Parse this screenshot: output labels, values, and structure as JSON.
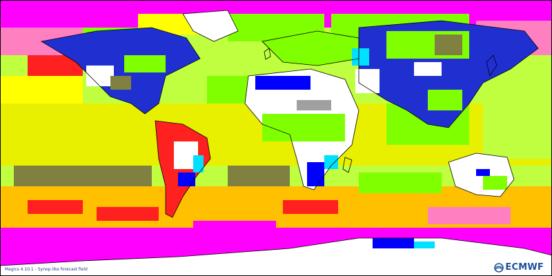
{
  "footer": {
    "credit": "Magics 4.10.1 - Synop-like forecast field"
  },
  "logo": {
    "text": "ECMWF",
    "icon": "ecmwf-logo-mark"
  },
  "palette": {
    "white": "#ffffff",
    "grey": "#a0a0a0",
    "olive": "#808040",
    "green": "#80ff00",
    "lime": "#c0ff40",
    "yellow": "#e8f000",
    "yellow2": "#ffff00",
    "orange": "#ffc000",
    "red": "#ff2020",
    "magenta": "#ff00ff",
    "pink": "#ff80c0",
    "blue": "#0000ff",
    "cyan": "#00e0ff",
    "lightblue": "#40a0ff",
    "coast": "#000000",
    "brand": "#1f4f9c"
  }
}
